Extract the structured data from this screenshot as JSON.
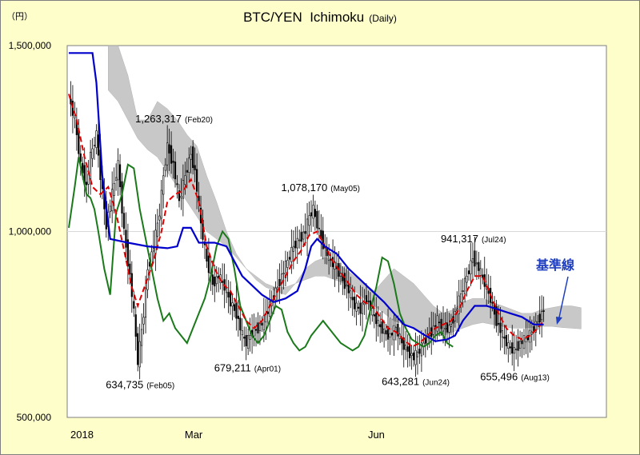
{
  "unit_label": "（円）",
  "chart_data": {
    "type": "candlestick-ichimoku",
    "title": "BTC/YEN  Ichimoku",
    "subtitle": "(Daily)",
    "ylim": [
      500000,
      1500000
    ],
    "y_ticks": [
      {
        "value": 1500000,
        "label": "1,500,000"
      },
      {
        "value": 1000000,
        "label": "1,000,000"
      },
      {
        "value": 500000,
        "label": "500,000"
      }
    ],
    "x_ticks": [
      {
        "day": 0,
        "label": "2018"
      },
      {
        "day": 58,
        "label": "Mar"
      },
      {
        "day": 151,
        "label": "Jun"
      }
    ],
    "grid": "horizontal",
    "annotations": [
      {
        "day": 50,
        "value": 1263317,
        "label": "1,263,317",
        "date": "(Feb20)",
        "pos": "above"
      },
      {
        "day": 35,
        "value": 634735,
        "label": "634,735",
        "date": "(Feb05)",
        "pos": "below"
      },
      {
        "day": 90,
        "value": 679211,
        "label": "679,211",
        "date": "(Apr01)",
        "pos": "below"
      },
      {
        "day": 124,
        "value": 1078170,
        "label": "1,078,170",
        "date": "(May05)",
        "pos": "above"
      },
      {
        "day": 175,
        "value": 643281,
        "label": "643,281",
        "date": "(Jun24)",
        "pos": "below"
      },
      {
        "day": 205,
        "value": 941317,
        "label": "941,317",
        "date": "(Jul24)",
        "pos": "above"
      },
      {
        "day": 225,
        "value": 655496,
        "label": "655,496",
        "date": "(Aug13)",
        "pos": "below"
      }
    ],
    "legend_label": "基準線",
    "colors": {
      "kijun": "#0000cc",
      "tenkan": "#e00000",
      "chikou": "#1a7a1a",
      "cloud": "#bfbfbf",
      "candle_up": "#ffffff",
      "candle_down": "#000000",
      "legend_text": "#1f3fc0",
      "grid": "#d9d9d9"
    },
    "last_price_day": 241,
    "days_shown": 272,
    "price_anchors": [
      [
        0,
        1360000
      ],
      [
        3,
        1300000
      ],
      [
        6,
        1180000
      ],
      [
        9,
        1120000
      ],
      [
        11,
        1200000
      ],
      [
        14,
        1260000
      ],
      [
        16,
        1150000
      ],
      [
        19,
        1020000
      ],
      [
        22,
        1100000
      ],
      [
        25,
        1180000
      ],
      [
        28,
        1000000
      ],
      [
        31,
        880000
      ],
      [
        33,
        780000
      ],
      [
        35,
        650000
      ],
      [
        38,
        780000
      ],
      [
        40,
        900000
      ],
      [
        43,
        960000
      ],
      [
        46,
        1050000
      ],
      [
        48,
        1150000
      ],
      [
        50,
        1230000
      ],
      [
        53,
        1180000
      ],
      [
        56,
        1080000
      ],
      [
        59,
        1150000
      ],
      [
        62,
        1210000
      ],
      [
        64,
        1160000
      ],
      [
        67,
        1020000
      ],
      [
        70,
        920000
      ],
      [
        73,
        860000
      ],
      [
        76,
        880000
      ],
      [
        79,
        850000
      ],
      [
        82,
        810000
      ],
      [
        85,
        780000
      ],
      [
        88,
        720000
      ],
      [
        90,
        700000
      ],
      [
        93,
        730000
      ],
      [
        96,
        740000
      ],
      [
        99,
        760000
      ],
      [
        102,
        800000
      ],
      [
        105,
        840000
      ],
      [
        108,
        880000
      ],
      [
        111,
        920000
      ],
      [
        114,
        960000
      ],
      [
        117,
        980000
      ],
      [
        120,
        1000000
      ],
      [
        122,
        1040000
      ],
      [
        124,
        1060000
      ],
      [
        127,
        1000000
      ],
      [
        130,
        950000
      ],
      [
        133,
        920000
      ],
      [
        136,
        900000
      ],
      [
        139,
        870000
      ],
      [
        142,
        840000
      ],
      [
        145,
        800000
      ],
      [
        148,
        790000
      ],
      [
        151,
        820000
      ],
      [
        154,
        780000
      ],
      [
        157,
        750000
      ],
      [
        160,
        730000
      ],
      [
        163,
        720000
      ],
      [
        166,
        740000
      ],
      [
        169,
        700000
      ],
      [
        172,
        680000
      ],
      [
        175,
        660000
      ],
      [
        178,
        680000
      ],
      [
        181,
        710000
      ],
      [
        184,
        730000
      ],
      [
        187,
        760000
      ],
      [
        190,
        740000
      ],
      [
        193,
        740000
      ],
      [
        196,
        780000
      ],
      [
        199,
        830000
      ],
      [
        202,
        880000
      ],
      [
        205,
        930000
      ],
      [
        208,
        900000
      ],
      [
        211,
        860000
      ],
      [
        214,
        820000
      ],
      [
        217,
        760000
      ],
      [
        220,
        720000
      ],
      [
        223,
        690000
      ],
      [
        226,
        680000
      ],
      [
        229,
        700000
      ],
      [
        232,
        710000
      ],
      [
        235,
        730000
      ],
      [
        238,
        760000
      ],
      [
        241,
        790000
      ]
    ],
    "kijun_anchors": [
      [
        0,
        1480000
      ],
      [
        12,
        1480000
      ],
      [
        14,
        1400000
      ],
      [
        17,
        1150000
      ],
      [
        21,
        980000
      ],
      [
        30,
        970000
      ],
      [
        40,
        960000
      ],
      [
        50,
        955000
      ],
      [
        55,
        960000
      ],
      [
        58,
        1010000
      ],
      [
        62,
        1010000
      ],
      [
        66,
        970000
      ],
      [
        74,
        970000
      ],
      [
        80,
        960000
      ],
      [
        84,
        920000
      ],
      [
        88,
        880000
      ],
      [
        92,
        860000
      ],
      [
        98,
        830000
      ],
      [
        104,
        810000
      ],
      [
        110,
        820000
      ],
      [
        116,
        840000
      ],
      [
        120,
        900000
      ],
      [
        123,
        960000
      ],
      [
        126,
        980000
      ],
      [
        130,
        960000
      ],
      [
        136,
        940000
      ],
      [
        142,
        900000
      ],
      [
        148,
        870000
      ],
      [
        152,
        850000
      ],
      [
        156,
        830000
      ],
      [
        160,
        810000
      ],
      [
        165,
        780000
      ],
      [
        170,
        750000
      ],
      [
        175,
        740000
      ],
      [
        181,
        720000
      ],
      [
        186,
        705000
      ],
      [
        192,
        710000
      ],
      [
        196,
        720000
      ],
      [
        200,
        760000
      ],
      [
        206,
        800000
      ],
      [
        212,
        800000
      ],
      [
        218,
        790000
      ],
      [
        224,
        780000
      ],
      [
        230,
        770000
      ],
      [
        236,
        750000
      ],
      [
        241,
        750000
      ]
    ],
    "tenkan_anchors": [
      [
        0,
        1370000
      ],
      [
        4,
        1300000
      ],
      [
        8,
        1200000
      ],
      [
        12,
        1120000
      ],
      [
        16,
        1100000
      ],
      [
        20,
        1120000
      ],
      [
        24,
        1050000
      ],
      [
        28,
        950000
      ],
      [
        32,
        850000
      ],
      [
        35,
        800000
      ],
      [
        39,
        860000
      ],
      [
        43,
        920000
      ],
      [
        47,
        1000000
      ],
      [
        50,
        1080000
      ],
      [
        54,
        1100000
      ],
      [
        58,
        1110000
      ],
      [
        62,
        1140000
      ],
      [
        66,
        1080000
      ],
      [
        70,
        960000
      ],
      [
        74,
        900000
      ],
      [
        78,
        860000
      ],
      [
        82,
        840000
      ],
      [
        86,
        800000
      ],
      [
        90,
        760000
      ],
      [
        94,
        740000
      ],
      [
        98,
        760000
      ],
      [
        102,
        800000
      ],
      [
        106,
        840000
      ],
      [
        110,
        880000
      ],
      [
        114,
        920000
      ],
      [
        118,
        950000
      ],
      [
        122,
        990000
      ],
      [
        126,
        1000000
      ],
      [
        130,
        960000
      ],
      [
        134,
        920000
      ],
      [
        138,
        890000
      ],
      [
        142,
        860000
      ],
      [
        146,
        830000
      ],
      [
        150,
        810000
      ],
      [
        154,
        800000
      ],
      [
        158,
        770000
      ],
      [
        162,
        740000
      ],
      [
        166,
        730000
      ],
      [
        170,
        710000
      ],
      [
        174,
        690000
      ],
      [
        178,
        700000
      ],
      [
        182,
        720000
      ],
      [
        186,
        740000
      ],
      [
        190,
        750000
      ],
      [
        194,
        760000
      ],
      [
        198,
        790000
      ],
      [
        202,
        840000
      ],
      [
        206,
        880000
      ],
      [
        210,
        880000
      ],
      [
        214,
        830000
      ],
      [
        218,
        780000
      ],
      [
        222,
        740000
      ],
      [
        226,
        720000
      ],
      [
        230,
        710000
      ],
      [
        234,
        720000
      ],
      [
        238,
        740000
      ],
      [
        241,
        760000
      ]
    ],
    "chikou_anchors": [
      [
        0,
        1010000
      ],
      [
        3,
        1120000
      ],
      [
        5,
        1200000
      ],
      [
        7,
        1150000
      ],
      [
        9,
        1100000
      ],
      [
        11,
        1090000
      ],
      [
        13,
        1060000
      ],
      [
        15,
        1000000
      ],
      [
        18,
        900000
      ],
      [
        21,
        830000
      ],
      [
        24,
        1050000
      ],
      [
        27,
        1100000
      ],
      [
        30,
        1180000
      ],
      [
        33,
        1170000
      ],
      [
        36,
        1060000
      ],
      [
        39,
        980000
      ],
      [
        42,
        900000
      ],
      [
        45,
        820000
      ],
      [
        48,
        760000
      ],
      [
        51,
        780000
      ],
      [
        54,
        740000
      ],
      [
        57,
        720000
      ],
      [
        60,
        700000
      ],
      [
        63,
        740000
      ],
      [
        66,
        780000
      ],
      [
        69,
        820000
      ],
      [
        72,
        880000
      ],
      [
        75,
        960000
      ],
      [
        78,
        1000000
      ],
      [
        81,
        980000
      ],
      [
        84,
        900000
      ],
      [
        87,
        800000
      ],
      [
        90,
        760000
      ],
      [
        93,
        720000
      ],
      [
        96,
        700000
      ],
      [
        99,
        720000
      ],
      [
        102,
        760000
      ],
      [
        105,
        800000
      ],
      [
        108,
        790000
      ],
      [
        111,
        730000
      ],
      [
        114,
        700000
      ],
      [
        117,
        680000
      ],
      [
        120,
        690000
      ],
      [
        123,
        720000
      ],
      [
        126,
        740000
      ],
      [
        129,
        760000
      ],
      [
        132,
        740000
      ],
      [
        135,
        720000
      ],
      [
        138,
        700000
      ],
      [
        141,
        690000
      ],
      [
        144,
        680000
      ],
      [
        147,
        690000
      ],
      [
        150,
        720000
      ],
      [
        153,
        790000
      ],
      [
        156,
        850000
      ],
      [
        159,
        930000
      ],
      [
        162,
        920000
      ],
      [
        165,
        860000
      ],
      [
        168,
        780000
      ],
      [
        171,
        740000
      ],
      [
        174,
        710000
      ],
      [
        177,
        700000
      ],
      [
        180,
        690000
      ],
      [
        183,
        700000
      ],
      [
        186,
        720000
      ],
      [
        189,
        730000
      ],
      [
        192,
        700000
      ],
      [
        195,
        690000
      ]
    ],
    "cloud_upper_anchors": [
      [
        20,
        1500000
      ],
      [
        25,
        1500000
      ],
      [
        30,
        1420000
      ],
      [
        35,
        1300000
      ],
      [
        40,
        1300000
      ],
      [
        45,
        1350000
      ],
      [
        50,
        1330000
      ],
      [
        55,
        1300000
      ],
      [
        60,
        1260000
      ],
      [
        65,
        1230000
      ],
      [
        70,
        1150000
      ],
      [
        75,
        1080000
      ],
      [
        80,
        1000000
      ],
      [
        85,
        940000
      ],
      [
        90,
        900000
      ],
      [
        95,
        870000
      ],
      [
        100,
        850000
      ],
      [
        105,
        840000
      ],
      [
        110,
        830000
      ],
      [
        115,
        860000
      ],
      [
        120,
        900000
      ],
      [
        125,
        920000
      ],
      [
        130,
        930000
      ],
      [
        135,
        920000
      ],
      [
        140,
        900000
      ],
      [
        145,
        880000
      ],
      [
        150,
        860000
      ],
      [
        155,
        840000
      ],
      [
        160,
        870000
      ],
      [
        165,
        900000
      ],
      [
        170,
        880000
      ],
      [
        175,
        860000
      ],
      [
        180,
        830000
      ],
      [
        185,
        800000
      ],
      [
        190,
        780000
      ],
      [
        195,
        790000
      ],
      [
        200,
        810000
      ],
      [
        205,
        820000
      ],
      [
        210,
        820000
      ],
      [
        215,
        810000
      ],
      [
        220,
        800000
      ],
      [
        225,
        790000
      ],
      [
        230,
        780000
      ],
      [
        235,
        780000
      ],
      [
        240,
        790000
      ],
      [
        245,
        795000
      ],
      [
        250,
        800000
      ],
      [
        255,
        800000
      ],
      [
        260,
        795000
      ]
    ],
    "cloud_lower_anchors": [
      [
        20,
        1380000
      ],
      [
        25,
        1350000
      ],
      [
        30,
        1300000
      ],
      [
        35,
        1250000
      ],
      [
        40,
        1220000
      ],
      [
        45,
        1200000
      ],
      [
        50,
        1160000
      ],
      [
        55,
        1120000
      ],
      [
        60,
        1080000
      ],
      [
        65,
        1040000
      ],
      [
        70,
        1000000
      ],
      [
        75,
        980000
      ],
      [
        80,
        960000
      ],
      [
        85,
        930000
      ],
      [
        90,
        900000
      ],
      [
        95,
        880000
      ],
      [
        100,
        860000
      ],
      [
        105,
        850000
      ],
      [
        110,
        850000
      ],
      [
        115,
        860000
      ],
      [
        120,
        870000
      ],
      [
        125,
        880000
      ],
      [
        130,
        880000
      ],
      [
        135,
        870000
      ],
      [
        140,
        860000
      ],
      [
        145,
        840000
      ],
      [
        150,
        820000
      ],
      [
        155,
        800000
      ],
      [
        160,
        780000
      ],
      [
        165,
        760000
      ],
      [
        170,
        750000
      ],
      [
        175,
        740000
      ],
      [
        180,
        730000
      ],
      [
        185,
        720000
      ],
      [
        190,
        720000
      ],
      [
        195,
        730000
      ],
      [
        200,
        740000
      ],
      [
        205,
        750000
      ],
      [
        210,
        755000
      ],
      [
        215,
        750000
      ],
      [
        220,
        745000
      ],
      [
        225,
        740000
      ],
      [
        230,
        740000
      ],
      [
        235,
        742000
      ],
      [
        240,
        745000
      ],
      [
        245,
        745000
      ],
      [
        250,
        742000
      ],
      [
        255,
        740000
      ],
      [
        260,
        738000
      ]
    ]
  }
}
